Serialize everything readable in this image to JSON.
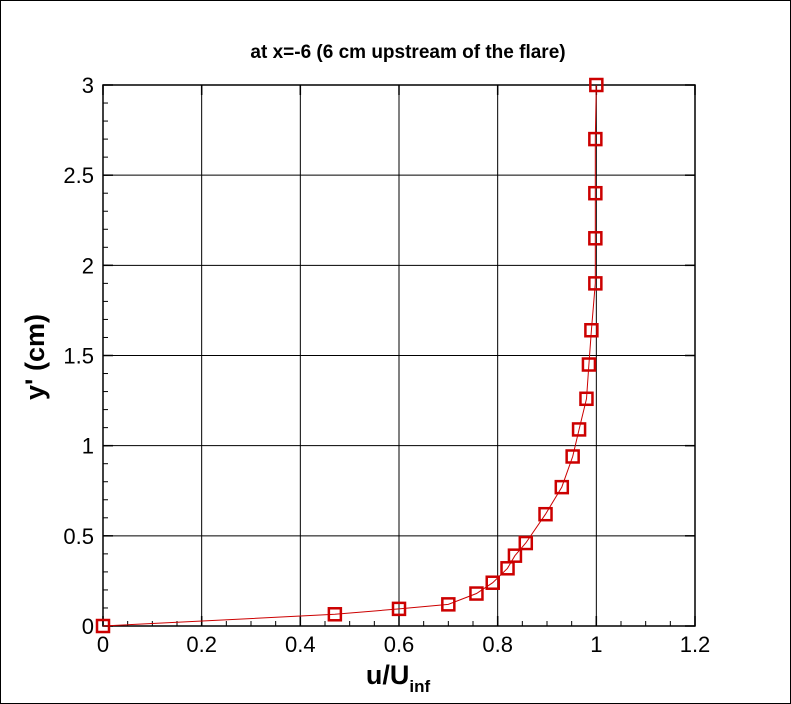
{
  "chart_data": {
    "type": "line",
    "title": "at x=-6 (6 cm upstream of the flare)",
    "xlabel_main": "u/U",
    "xlabel_sub": "inf",
    "ylabel": "y' (cm)",
    "xlim": [
      0,
      1.2
    ],
    "ylim": [
      0,
      3
    ],
    "xticks": [
      0,
      0.2,
      0.4,
      0.6,
      0.8,
      1,
      1.2
    ],
    "xtick_labels": [
      "0",
      "0.2",
      "0.4",
      "0.6",
      "0.8",
      "1",
      "1.2"
    ],
    "yticks": [
      0,
      0.5,
      1,
      1.5,
      2,
      2.5,
      3
    ],
    "ytick_labels": [
      "0",
      "0.5",
      "1",
      "1.5",
      "2",
      "2.5",
      "3"
    ],
    "grid": true,
    "series": [
      {
        "color": "#cc0000",
        "marker": "square",
        "points": [
          {
            "x": 0.0,
            "y": 0.0
          },
          {
            "x": 0.47,
            "y": 0.065
          },
          {
            "x": 0.6,
            "y": 0.095
          },
          {
            "x": 0.7,
            "y": 0.12
          },
          {
            "x": 0.757,
            "y": 0.18
          },
          {
            "x": 0.79,
            "y": 0.24
          },
          {
            "x": 0.82,
            "y": 0.32
          },
          {
            "x": 0.835,
            "y": 0.39
          },
          {
            "x": 0.857,
            "y": 0.46
          },
          {
            "x": 0.897,
            "y": 0.62
          },
          {
            "x": 0.93,
            "y": 0.77
          },
          {
            "x": 0.952,
            "y": 0.94
          },
          {
            "x": 0.965,
            "y": 1.09
          },
          {
            "x": 0.98,
            "y": 1.26
          },
          {
            "x": 0.985,
            "y": 1.45
          },
          {
            "x": 0.99,
            "y": 1.64
          },
          {
            "x": 0.998,
            "y": 1.9
          },
          {
            "x": 0.998,
            "y": 2.15
          },
          {
            "x": 0.998,
            "y": 2.4
          },
          {
            "x": 0.998,
            "y": 2.7
          },
          {
            "x": 1.0,
            "y": 3.0
          }
        ]
      }
    ]
  }
}
